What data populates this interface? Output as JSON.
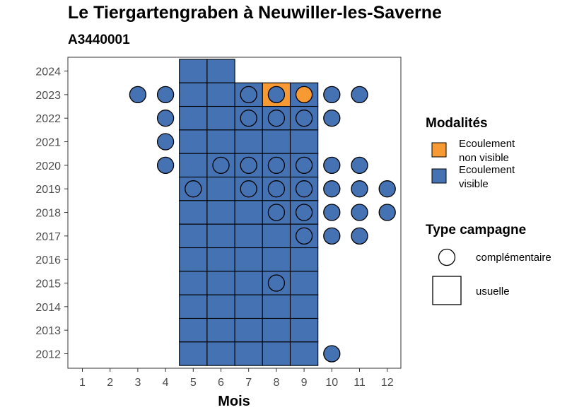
{
  "chart_data": {
    "type": "heatmap",
    "title": "Le Tiergartengraben à Neuwiller-les-Saverne",
    "subtitle": "A3440001",
    "xlabel": "Mois",
    "ylabel": "",
    "x_ticks": [
      1,
      2,
      3,
      4,
      5,
      6,
      7,
      8,
      9,
      10,
      11,
      12
    ],
    "y_ticks": [
      2012,
      2013,
      2014,
      2015,
      2016,
      2017,
      2018,
      2019,
      2020,
      2021,
      2022,
      2023,
      2024
    ],
    "colors": {
      "visible": "#4572b3",
      "non_visible": "#f79a33"
    },
    "legend": {
      "modalites_title": "Modalités",
      "modalites": [
        {
          "key": "non_visible",
          "label_line1": "Ecoulement",
          "label_line2": "non visible"
        },
        {
          "key": "visible",
          "label_line1": "Ecoulement",
          "label_line2": "visible"
        }
      ],
      "type_title": "Type campagne",
      "types": [
        {
          "key": "complementaire",
          "label": "complémentaire"
        },
        {
          "key": "usuelle",
          "label": "usuelle"
        }
      ]
    },
    "usuelle": [
      {
        "year": 2024,
        "months": [
          5,
          6
        ],
        "modalite": "visible"
      },
      {
        "year": 2023,
        "months": [
          5,
          6,
          7,
          9
        ],
        "modalite": "visible"
      },
      {
        "year": 2023,
        "months": [
          8
        ],
        "modalite": "non_visible"
      },
      {
        "year": 2022,
        "months": [
          5,
          6,
          7,
          8,
          9
        ],
        "modalite": "visible"
      },
      {
        "year": 2021,
        "months": [
          5,
          6,
          7,
          8,
          9
        ],
        "modalite": "visible"
      },
      {
        "year": 2020,
        "months": [
          5,
          6,
          7,
          8,
          9
        ],
        "modalite": "visible"
      },
      {
        "year": 2019,
        "months": [
          5,
          6,
          7,
          8,
          9
        ],
        "modalite": "visible"
      },
      {
        "year": 2018,
        "months": [
          5,
          6,
          7,
          8,
          9
        ],
        "modalite": "visible"
      },
      {
        "year": 2017,
        "months": [
          5,
          6,
          7,
          8,
          9
        ],
        "modalite": "visible"
      },
      {
        "year": 2016,
        "months": [
          5,
          6,
          7,
          8,
          9
        ],
        "modalite": "visible"
      },
      {
        "year": 2015,
        "months": [
          5,
          6,
          7,
          8,
          9
        ],
        "modalite": "visible"
      },
      {
        "year": 2014,
        "months": [
          5,
          6,
          7,
          8,
          9
        ],
        "modalite": "visible"
      },
      {
        "year": 2013,
        "months": [
          5,
          6,
          7,
          8,
          9
        ],
        "modalite": "visible"
      },
      {
        "year": 2012,
        "months": [
          5,
          6,
          7,
          8,
          9
        ],
        "modalite": "visible"
      }
    ],
    "complementaire": [
      {
        "year": 2023,
        "months": [
          3,
          4,
          7,
          8,
          10,
          11
        ],
        "modalite": "visible"
      },
      {
        "year": 2023,
        "months": [
          9
        ],
        "modalite": "non_visible"
      },
      {
        "year": 2022,
        "months": [
          4,
          7,
          8,
          9,
          10
        ],
        "modalite": "visible"
      },
      {
        "year": 2021,
        "months": [
          4
        ],
        "modalite": "visible"
      },
      {
        "year": 2020,
        "months": [
          4,
          6,
          7,
          8,
          9,
          10,
          11
        ],
        "modalite": "visible"
      },
      {
        "year": 2019,
        "months": [
          5,
          7,
          8,
          9,
          10,
          11,
          12
        ],
        "modalite": "visible"
      },
      {
        "year": 2018,
        "months": [
          8,
          9,
          10,
          11,
          12
        ],
        "modalite": "visible"
      },
      {
        "year": 2017,
        "months": [
          9,
          10,
          11
        ],
        "modalite": "visible"
      },
      {
        "year": 2015,
        "months": [
          8
        ],
        "modalite": "visible"
      },
      {
        "year": 2012,
        "months": [
          10
        ],
        "modalite": "visible"
      }
    ]
  }
}
